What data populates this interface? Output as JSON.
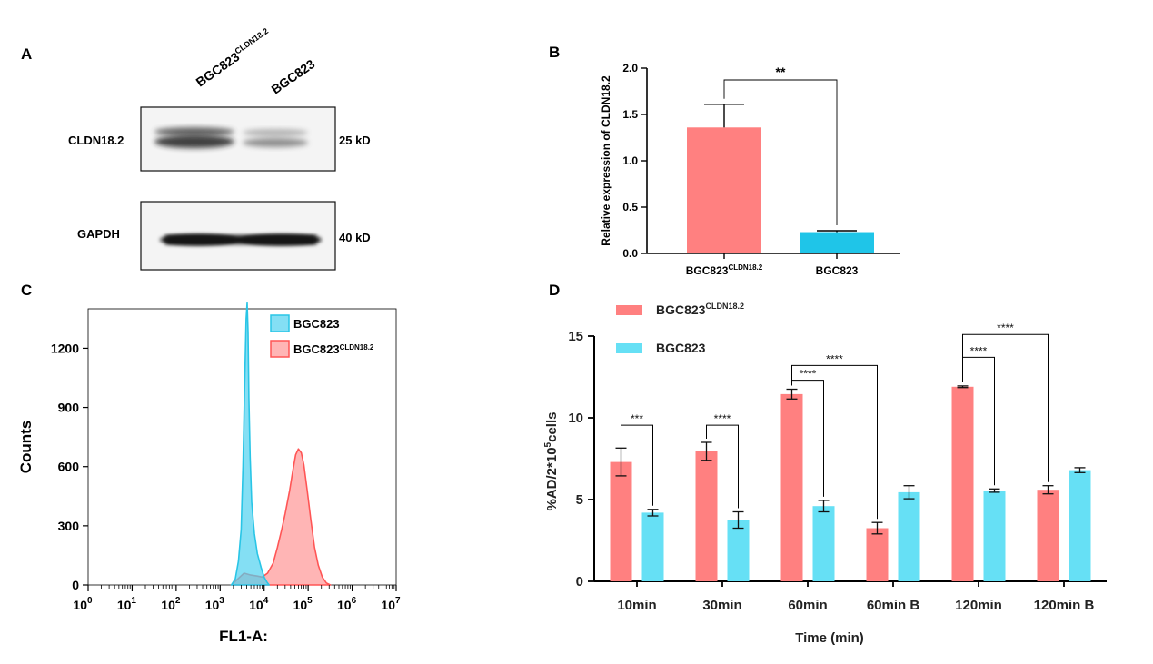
{
  "panels": {
    "a": "A",
    "b": "B",
    "c": "C",
    "d": "D"
  },
  "colors": {
    "red": "#ff8080",
    "blue": "#29c5e6",
    "blue_bar": "#66e0f5",
    "axis": "#000000"
  },
  "blot": {
    "lane_labels": [
      {
        "name": "BGC823",
        "sup": "CLDN18.2"
      },
      {
        "name": "BGC823",
        "sup": ""
      }
    ],
    "rows": [
      {
        "protein": "CLDN18.2",
        "size": "25 kD"
      },
      {
        "protein": "GAPDH",
        "size": "40 kD"
      }
    ]
  },
  "chart_data": [
    {
      "panel": "B",
      "type": "bar",
      "categories": [
        {
          "name": "BGC823",
          "sup": "CLDN18.2"
        },
        {
          "name": "BGC823",
          "sup": ""
        }
      ],
      "values": [
        1.36,
        0.23
      ],
      "errors": [
        0.25,
        0.015
      ],
      "bar_colors": [
        "#ff8080",
        "#1fc5e8"
      ],
      "ylabel": "Relative expression of CLDN18.2",
      "ylim": [
        0,
        2.0
      ],
      "yticks": [
        "0.0",
        "0.5",
        "1.0",
        "1.5",
        "2.0"
      ],
      "yticks_values": [
        0,
        0.5,
        1.0,
        1.5,
        2.0
      ],
      "significance": [
        {
          "from": 0,
          "to": 1,
          "label": "**"
        }
      ]
    },
    {
      "panel": "C",
      "type": "area",
      "xlabel": "FL1-A:",
      "ylabel": "Counts",
      "x_scale": "log",
      "xlim": [
        1,
        10000000
      ],
      "ylim": [
        0,
        1400
      ],
      "xticks": [
        {
          "base": "10",
          "exp": "0"
        },
        {
          "base": "10",
          "exp": "1"
        },
        {
          "base": "10",
          "exp": "2"
        },
        {
          "base": "10",
          "exp": "3"
        },
        {
          "base": "10",
          "exp": "4"
        },
        {
          "base": "10",
          "exp": "5"
        },
        {
          "base": "10",
          "exp": "6"
        },
        {
          "base": "10",
          "exp": "7"
        }
      ],
      "yticks": [
        "0",
        "300",
        "600",
        "900",
        "1200"
      ],
      "yticks_values": [
        0,
        300,
        600,
        900,
        1200
      ],
      "legend": [
        {
          "name": "BGC823",
          "sup": ""
        },
        {
          "name": "BGC823",
          "sup": "CLDN18.2"
        }
      ],
      "legend_position": "top-right",
      "series": [
        {
          "name": "BGC823",
          "color": "#29c5e6",
          "x": [
            1800,
            2200,
            2600,
            3000,
            3300,
            3600,
            3900,
            4100,
            4300,
            4500,
            4800,
            5200,
            6000,
            7000,
            8500,
            10000,
            11500,
            13000
          ],
          "y": [
            0,
            30,
            120,
            280,
            600,
            1000,
            1350,
            1430,
            1280,
            950,
            650,
            420,
            260,
            160,
            90,
            40,
            15,
            0
          ]
        },
        {
          "name": "BGC823CLDN18.2",
          "color": "#ff5555",
          "x": [
            1800,
            2500,
            3500,
            5000,
            7000,
            9000,
            12000,
            16000,
            20000,
            25000,
            30000,
            38000,
            45000,
            52000,
            60000,
            70000,
            80000,
            95000,
            115000,
            140000,
            170000,
            210000,
            260000,
            320000
          ],
          "y": [
            0,
            30,
            60,
            50,
            45,
            40,
            60,
            110,
            190,
            280,
            360,
            480,
            580,
            660,
            690,
            670,
            610,
            480,
            330,
            190,
            100,
            40,
            10,
            0
          ]
        }
      ]
    },
    {
      "panel": "D",
      "type": "bar",
      "categories": [
        "10min",
        "30min",
        "60min",
        "60min B",
        "120min",
        "120min B"
      ],
      "xlabel": "Time (min)",
      "ylabel": "%AD/2*10^5cells",
      "ylabel_parts": {
        "pre": "%AD/2*10",
        "sup": "5",
        "post": "cells"
      },
      "ylim": [
        0,
        15
      ],
      "yticks": [
        "0",
        "5",
        "10",
        "15"
      ],
      "yticks_values": [
        0,
        5,
        10,
        15
      ],
      "legend": [
        {
          "name": "BGC823",
          "sup": "CLDN18.2"
        },
        {
          "name": "BGC823",
          "sup": ""
        }
      ],
      "legend_position": "top-left",
      "series": [
        {
          "name": "BGC823CLDN18.2",
          "color": "#ff8080",
          "values": [
            7.3,
            7.95,
            11.45,
            3.25,
            11.9,
            5.6
          ],
          "errors": [
            0.85,
            0.55,
            0.3,
            0.35,
            0.05,
            0.25
          ]
        },
        {
          "name": "BGC823",
          "color": "#66e0f5",
          "values": [
            4.2,
            3.75,
            4.6,
            5.45,
            5.55,
            6.8
          ],
          "errors": [
            0.2,
            0.5,
            0.35,
            0.4,
            0.1,
            0.15
          ]
        }
      ],
      "significance": [
        {
          "from": [
            0,
            0
          ],
          "to": [
            0,
            1
          ],
          "label": "***",
          "level": 9.55
        },
        {
          "from": [
            1,
            0
          ],
          "to": [
            1,
            1
          ],
          "label": "****",
          "level": 9.55
        },
        {
          "from": [
            2,
            0
          ],
          "to": [
            2,
            1
          ],
          "label": "****",
          "level": 12.3
        },
        {
          "from": [
            2,
            0
          ],
          "to": [
            3,
            0
          ],
          "label": "****",
          "level": 13.2
        },
        {
          "from": [
            4,
            0
          ],
          "to": [
            4,
            1
          ],
          "label": "****",
          "level": 13.7
        },
        {
          "from": [
            4,
            0
          ],
          "to": [
            5,
            0
          ],
          "label": "****",
          "level": 15.1
        }
      ]
    }
  ]
}
